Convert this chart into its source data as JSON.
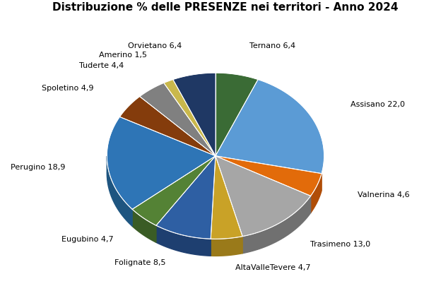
{
  "title": "Distribuzione % delle PRESENZE nei territori - Anno 2024",
  "labels": [
    "Ternano 6,4",
    "Assisano 22,0",
    "Valnerina 4,6",
    "Trasimeno 13,0",
    "AltaValleTevere 4,7",
    "Folignate 8,5",
    "Eugubino 4,7",
    "Perugino 18,9",
    "Spoletino 4,9",
    "Tuderte 4,4",
    "Amerino 1,5",
    "Orvietano 6,4"
  ],
  "values": [
    6.4,
    22.0,
    4.6,
    13.0,
    4.7,
    8.5,
    4.7,
    18.9,
    4.9,
    4.4,
    1.5,
    6.4
  ],
  "colors": [
    "#3a6b35",
    "#5b9bd5",
    "#e26b0a",
    "#a6a6a6",
    "#c9a227",
    "#2e5fa3",
    "#548235",
    "#2e75b6",
    "#843c0c",
    "#808080",
    "#c9b84c",
    "#1f3864"
  ],
  "depth_colors": [
    "#2a5025",
    "#3a6fa5",
    "#b04d07",
    "#707070",
    "#9a7a1a",
    "#1e3f70",
    "#3a5c25",
    "#1e5580",
    "#5a2808",
    "#555555",
    "#998820",
    "#111d3a"
  ],
  "startangle": 90,
  "title_fontsize": 11,
  "label_fontsize": 8
}
